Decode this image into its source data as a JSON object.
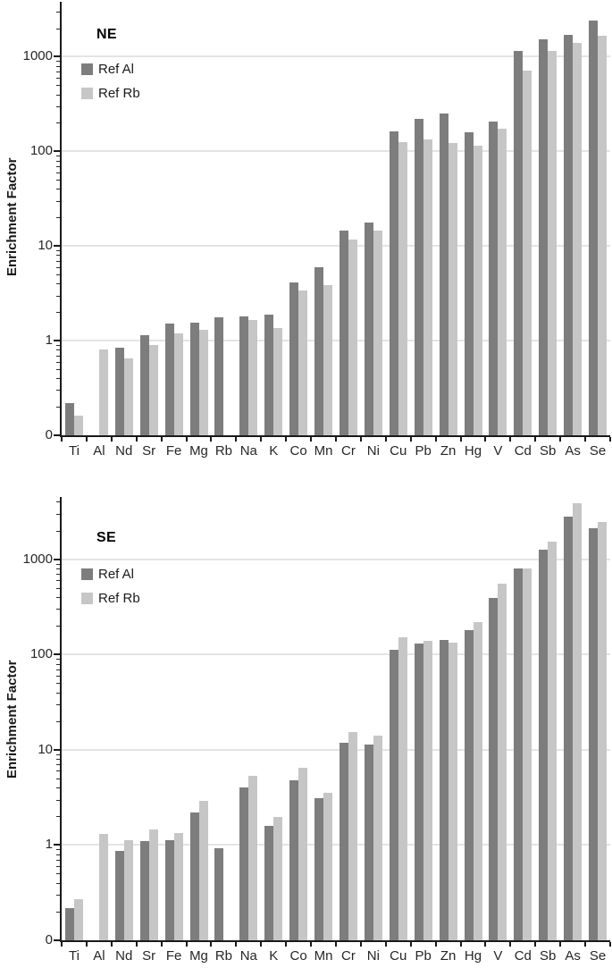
{
  "figure": {
    "ylabel": "Enrichment Factor"
  },
  "chart_data": [
    {
      "type": "bar",
      "title": "NE",
      "ylabel": "Enrichment Factor",
      "yscale": "log",
      "ylim": [
        0.1,
        3800
      ],
      "grid": "horizontal-major-only",
      "legend_position": "top-left-inside",
      "yticks": [
        {
          "label": "0",
          "value": 0.1
        },
        {
          "label": "1",
          "value": 1
        },
        {
          "label": "10",
          "value": 10
        },
        {
          "label": "100",
          "value": 100
        },
        {
          "label": "1000",
          "value": 1000
        }
      ],
      "categories": [
        "Ti",
        "Al",
        "Nd",
        "Sr",
        "Fe",
        "Mg",
        "Rb",
        "Na",
        "K",
        "Co",
        "Mn",
        "Cr",
        "Ni",
        "Cu",
        "Pb",
        "Zn",
        "Hg",
        "V",
        "Cd",
        "Sb",
        "As",
        "Se"
      ],
      "series": [
        {
          "name": "Ref Al",
          "color": "#7d7d7d",
          "values": [
            0.22,
            null,
            0.85,
            1.15,
            1.5,
            1.55,
            1.75,
            1.8,
            1.9,
            4.1,
            6.0,
            14.5,
            17.5,
            163,
            220,
            250,
            160,
            208,
            1150,
            1510,
            1710,
            2420
          ]
        },
        {
          "name": "Ref Rb",
          "color": "#c6c6c6",
          "values": [
            0.16,
            0.8,
            0.65,
            0.9,
            1.2,
            1.3,
            null,
            1.65,
            1.35,
            3.4,
            3.9,
            11.7,
            14.4,
            124,
            133,
            122,
            115,
            174,
            710,
            1140,
            1400,
            1680
          ]
        }
      ]
    },
    {
      "type": "bar",
      "title": "SE",
      "ylabel": "Enrichment Factor",
      "yscale": "log",
      "ylim": [
        0.1,
        4500
      ],
      "grid": "horizontal-major-only",
      "legend_position": "top-left-inside",
      "yticks": [
        {
          "label": "0",
          "value": 0.1
        },
        {
          "label": "1",
          "value": 1
        },
        {
          "label": "10",
          "value": 10
        },
        {
          "label": "100",
          "value": 100
        },
        {
          "label": "1000",
          "value": 1000
        }
      ],
      "categories": [
        "Ti",
        "Al",
        "Nd",
        "Sr",
        "Fe",
        "Mg",
        "Rb",
        "Na",
        "K",
        "Co",
        "Mn",
        "Cr",
        "Ni",
        "Cu",
        "Pb",
        "Zn",
        "Hg",
        "V",
        "Cd",
        "Sb",
        "As",
        "Se"
      ],
      "series": [
        {
          "name": "Ref Al",
          "color": "#7d7d7d",
          "values": [
            0.22,
            null,
            0.87,
            1.1,
            1.12,
            2.2,
            0.92,
            4.0,
            1.6,
            4.8,
            3.1,
            11.9,
            11.3,
            112,
            130,
            141,
            179,
            394,
            794,
            1270,
            2820,
            2110
          ]
        },
        {
          "name": "Ref Rb",
          "color": "#c6c6c6",
          "values": [
            0.27,
            1.3,
            1.12,
            1.45,
            1.35,
            2.9,
            null,
            5.3,
            1.95,
            6.4,
            3.5,
            15.4,
            14.0,
            150,
            140,
            132,
            217,
            549,
            800,
            1520,
            3870,
            2480
          ]
        }
      ]
    }
  ]
}
